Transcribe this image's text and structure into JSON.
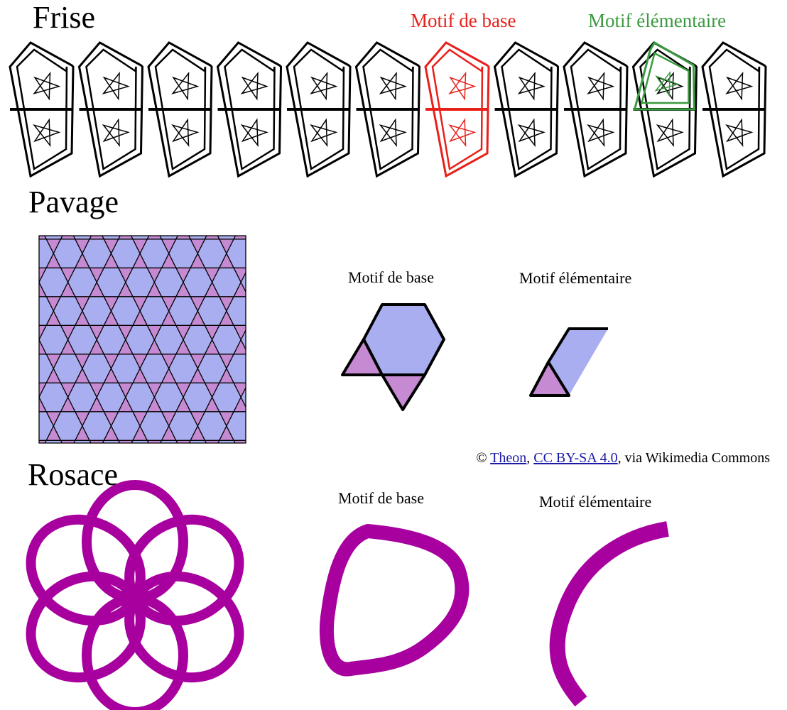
{
  "frise": {
    "title": "Frise",
    "base_label": "Motif de base",
    "elementary_label": "Motif élémentaire",
    "unit_count": 11,
    "highlight_base_color": "#e8201a",
    "highlight_elementary_color": "#3a9a3f"
  },
  "pavage": {
    "title": "Pavage",
    "base_label": "Motif de base",
    "elementary_label": "Motif élémentaire",
    "hexagon_color": "#a8aef0",
    "triangle_color": "#c68ad2"
  },
  "attribution": {
    "prefix": "© ",
    "author": "Theon",
    "sep": ", ",
    "license": "CC BY-SA 4.0",
    "suffix": ", via Wikimedia Commons"
  },
  "rosace": {
    "title": "Rosace",
    "base_label": "Motif de base",
    "elementary_label": "Motif élémentaire",
    "petal_count": 6,
    "color": "#a8009f"
  }
}
